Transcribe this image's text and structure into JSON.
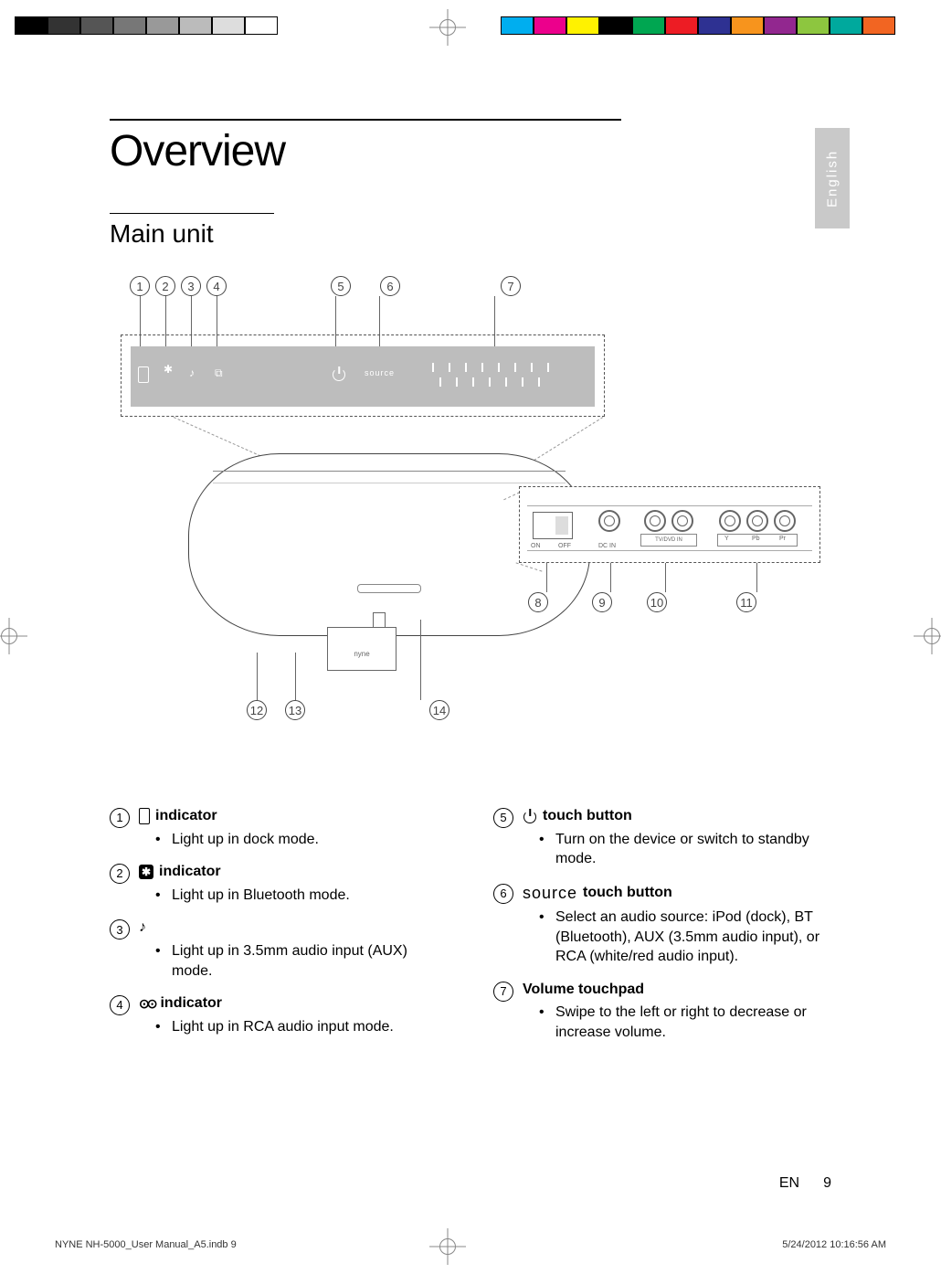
{
  "printer_marks": {
    "grey_swatches": [
      "#000000",
      "#333333",
      "#555555",
      "#777777",
      "#999999",
      "#bbbbbb",
      "#dddddd",
      "#ffffff"
    ],
    "color_swatches": [
      "#00aeef",
      "#ec008c",
      "#fff200",
      "#000000",
      "#00a651",
      "#ed1c24",
      "#2e3192",
      "#f7941d",
      "#92278f",
      "#8dc63f",
      "#00a99d",
      "#f26522"
    ]
  },
  "lang_tab": "English",
  "title": "Overview",
  "subtitle": "Main unit",
  "diagram": {
    "top_callouts": [
      "1",
      "2",
      "3",
      "4",
      "5",
      "6",
      "7"
    ],
    "rear_callouts": [
      "8",
      "9",
      "10",
      "11"
    ],
    "bottom_callouts": [
      "12",
      "13",
      "14"
    ],
    "top_panel": {
      "source_label": "source"
    },
    "rear_labels": {
      "on": "ON",
      "off": "OFF",
      "dcin": "DC IN",
      "tvdvd": "TV/DVD IN",
      "ypbpr_y": "Y",
      "ypbpr_pb": "Pb",
      "ypbpr_pr": "Pr"
    },
    "dock_label": "nyne"
  },
  "indicator_word": "indicator",
  "touch_button_word": "touch button",
  "source_word": "source",
  "items_left": [
    {
      "num": "1",
      "icon": "phone",
      "title_suffix": "indicator",
      "bullet": "Light up in dock mode."
    },
    {
      "num": "2",
      "icon": "bt",
      "title_suffix": "indicator",
      "bullet": "Light up in Bluetooth mode."
    },
    {
      "num": "3",
      "icon": "aux",
      "title_suffix": "",
      "bullet": "Light up in 3.5mm audio input (AUX) mode."
    },
    {
      "num": "4",
      "icon": "rca",
      "title_suffix": "indicator",
      "bullet": "Light up in RCA audio input mode."
    }
  ],
  "items_right": [
    {
      "num": "5",
      "icon": "power",
      "title_suffix": "touch button",
      "bullet": "Turn on the device or switch to standby mode."
    },
    {
      "num": "6",
      "icon": "source",
      "title_suffix": "touch button",
      "bullet": "Select an audio source: iPod (dock), BT (Bluetooth), AUX (3.5mm audio input), or RCA (white/red audio input)."
    },
    {
      "num": "7",
      "icon": "",
      "title": "Volume touchpad",
      "bullet": "Swipe to the left or right to decrease or increase volume."
    }
  ],
  "footer": {
    "lang": "EN",
    "page": "9"
  },
  "print_footer": {
    "file": "NYNE NH-5000_User Manual_A5.indb   9",
    "timestamp": "5/24/2012   10:16:56 AM"
  }
}
